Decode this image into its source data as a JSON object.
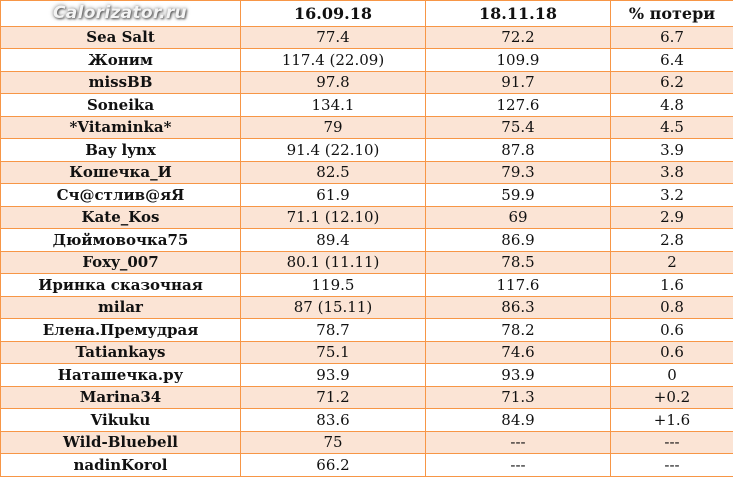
{
  "header": [
    "",
    "16.09.18",
    "18.11.18",
    "% потери"
  ],
  "rows": [
    [
      "Sea Salt",
      "77.4",
      "72.2",
      "6.7"
    ],
    [
      "Жоним",
      "117.4 (22.09)",
      "109.9",
      "6.4"
    ],
    [
      "missBB",
      "97.8",
      "91.7",
      "6.2"
    ],
    [
      "Soneika",
      "134.1",
      "127.6",
      "4.8"
    ],
    [
      "*Vitaminka*",
      "79",
      "75.4",
      "4.5"
    ],
    [
      "Bay lynx",
      "91.4 (22.10)",
      "87.8",
      "3.9"
    ],
    [
      "Кошечка_И",
      "82.5",
      "79.3",
      "3.8"
    ],
    [
      "Сч@стлив@яЯ",
      "61.9",
      "59.9",
      "3.2"
    ],
    [
      "Kate_Kos",
      "71.1 (12.10)",
      "69",
      "2.9"
    ],
    [
      "Дюймовочка75",
      "89.4",
      "86.9",
      "2.8"
    ],
    [
      "Foxy_007",
      "80.1 (11.11)",
      "78.5",
      "2"
    ],
    [
      "Иринка сказочная",
      "119.5",
      "117.6",
      "1.6"
    ],
    [
      "milar",
      "87 (15.11)",
      "86.3",
      "0.8"
    ],
    [
      "Елена.Премудрая",
      "78.7",
      "78.2",
      "0.6"
    ],
    [
      "Tatiankays",
      "75.1",
      "74.6",
      "0.6"
    ],
    [
      "Наташечка.ру",
      "93.9",
      "93.9",
      "0"
    ],
    [
      "Marina34",
      "71.2",
      "71.3",
      "+0.2"
    ],
    [
      "Vikuku",
      "83.6",
      "84.9",
      "+1.6"
    ],
    [
      "Wild-Bluebell",
      "75",
      "---",
      "---"
    ],
    [
      "nadinKorol",
      "66.2",
      "---",
      "---"
    ]
  ],
  "watermark": "Calorizator.ru",
  "colors": {
    "border": "#f79646",
    "row_fill": "#fbe4d5"
  }
}
